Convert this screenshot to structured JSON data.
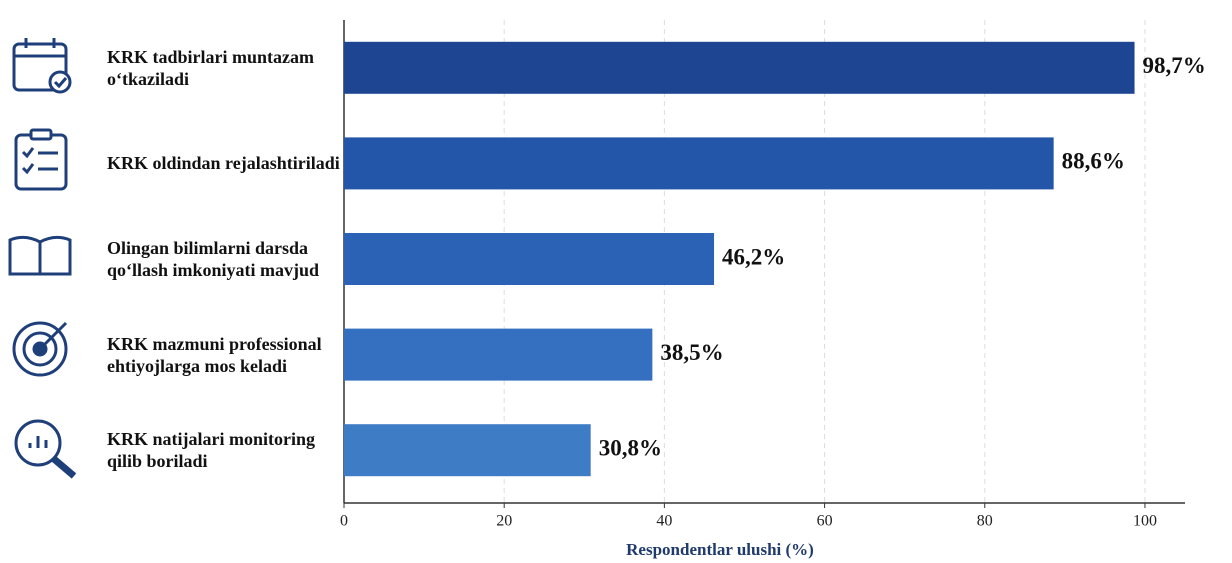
{
  "chart_data": {
    "type": "bar",
    "orientation": "horizontal",
    "categories": [
      "KRK tadbirlari muntazam o‘tkaziladi",
      "KRK oldindan rejalashtiriladi",
      "Olingan bilimlarni darsda qo‘llash imkoniyati mavjud",
      "KRK mazmuni professional ehtiyojlarga mos keladi",
      "KRK natijalari monitoring qilib boriladi"
    ],
    "values": [
      98.7,
      88.6,
      46.2,
      38.5,
      30.8
    ],
    "value_labels": [
      "98,7%",
      "88,6%",
      "46,2%",
      "38,5%",
      "30,8%"
    ],
    "colors": [
      "#1d4592",
      "#2355a8",
      "#2b62b6",
      "#3470bf",
      "#3f7cc6"
    ],
    "xlabel": "Respondentlar ulushi (%)",
    "xlim": [
      0,
      105
    ],
    "xticks": [
      0,
      20,
      40,
      60,
      80,
      100
    ],
    "grid": true
  }
}
